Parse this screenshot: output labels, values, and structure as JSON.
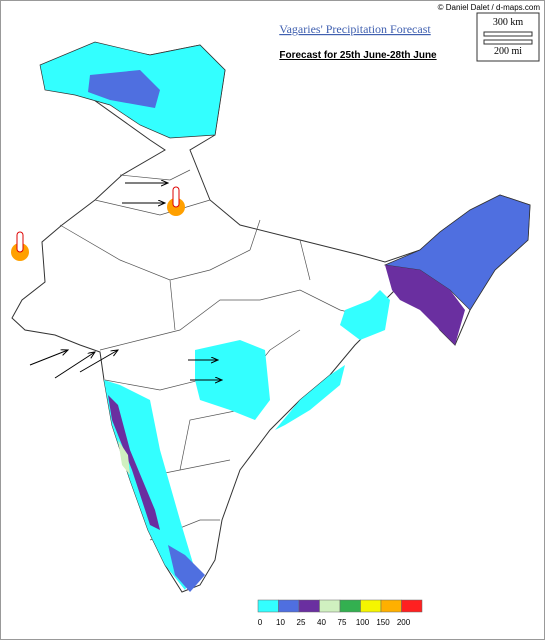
{
  "credit": "© Daniel Dalet / d-maps.com",
  "title": "Vagaries' Precipitation Forecast",
  "subtitle": "Forecast for 25th June-28th June",
  "scale": {
    "km": "300 km",
    "mi": "200 mi"
  },
  "legend": {
    "labels": [
      "0",
      "10",
      "25",
      "40",
      "75",
      "100",
      "150",
      "200"
    ],
    "colors": [
      "#33ffff",
      "#4f6fe0",
      "#6a2fa0",
      "#d0f0c0",
      "#33b050",
      "#f5f500",
      "#ffb000",
      "#ff2020"
    ]
  }
}
